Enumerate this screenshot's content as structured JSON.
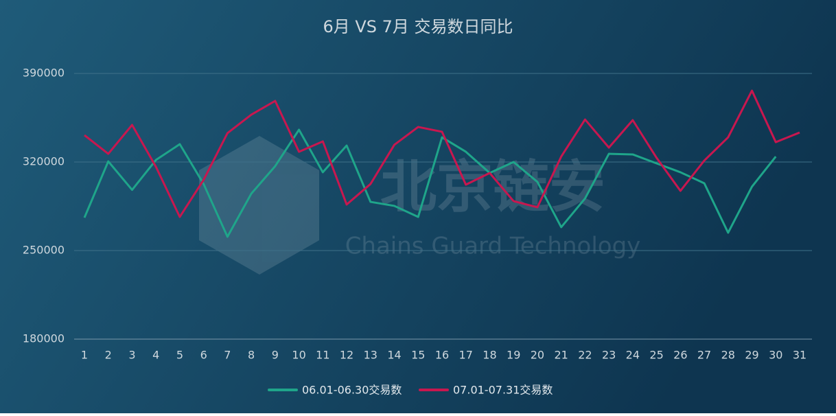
{
  "chart_data": {
    "type": "line",
    "title": "6月 VS 7月 交易数日同比",
    "watermark": {
      "logo_text": "北京链安",
      "sub_text": "Chains Guard Technology"
    },
    "categories": [
      "1",
      "2",
      "3",
      "4",
      "5",
      "6",
      "7",
      "8",
      "9",
      "10",
      "11",
      "12",
      "13",
      "14",
      "15",
      "16",
      "17",
      "18",
      "19",
      "20",
      "21",
      "22",
      "23",
      "24",
      "25",
      "26",
      "27",
      "28",
      "29",
      "30",
      "31"
    ],
    "series": [
      {
        "name": "06.01-06.30交易数",
        "color": "#1fa58a",
        "values": [
          276000,
          320500,
          298000,
          321600,
          334100,
          302600,
          260900,
          295000,
          316700,
          345500,
          311900,
          333000,
          288500,
          285300,
          276600,
          339500,
          328100,
          311300,
          320000,
          304300,
          268500,
          291200,
          326500,
          326000,
          318900,
          311900,
          303200,
          264100,
          300500,
          324300,
          null
        ]
      },
      {
        "name": "07.01-07.31交易数",
        "color": "#c8174f",
        "values": [
          341200,
          326500,
          349300,
          316200,
          276600,
          305900,
          342800,
          357400,
          368300,
          328100,
          336300,
          286400,
          302600,
          333600,
          347700,
          343900,
          302100,
          311300,
          289100,
          284200,
          324300,
          353600,
          331400,
          353100,
          323300,
          297200,
          321100,
          339500,
          376400,
          335700,
          343300
        ]
      }
    ],
    "ylim": [
      180000,
      390000
    ],
    "yticks": [
      180000,
      250000,
      320000,
      390000
    ],
    "grid": true,
    "legend": "bottom"
  }
}
